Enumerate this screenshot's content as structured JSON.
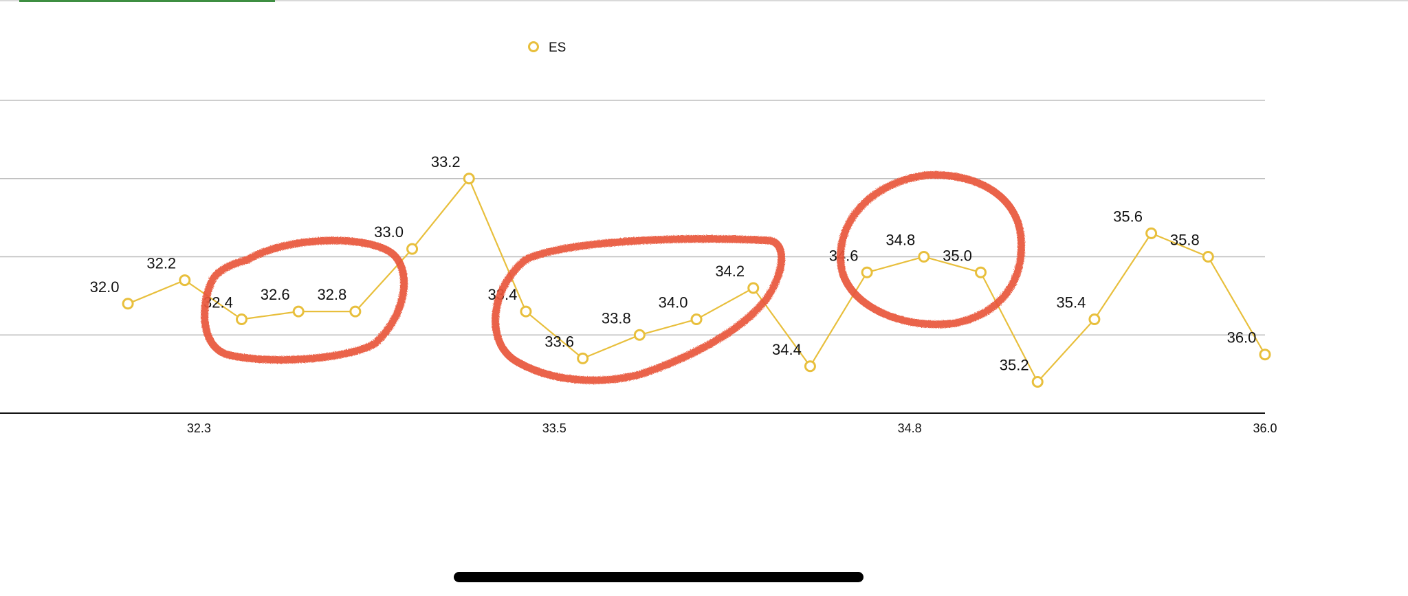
{
  "status": {
    "progress_color": "#3e8e41"
  },
  "legend": {
    "label": "ES"
  },
  "colors": {
    "series": "#e8bf3c",
    "annotation": "#e9573a",
    "grid": "#bdbdbd",
    "axis": "#111111"
  },
  "chart_data": {
    "type": "line",
    "series": [
      {
        "name": "ES",
        "points": [
          {
            "x": 32.0,
            "y": 0.4,
            "label": "32.0"
          },
          {
            "x": 32.2,
            "y": 0.7,
            "label": "32.2"
          },
          {
            "x": 32.4,
            "y": 0.2,
            "label": "32.4"
          },
          {
            "x": 32.6,
            "y": 0.3,
            "label": "32.6"
          },
          {
            "x": 32.8,
            "y": 0.3,
            "label": "32.8"
          },
          {
            "x": 33.0,
            "y": 1.1,
            "label": "33.0"
          },
          {
            "x": 33.2,
            "y": 2.0,
            "label": "33.2"
          },
          {
            "x": 33.4,
            "y": 0.3,
            "label": "33.4"
          },
          {
            "x": 33.6,
            "y": -0.3,
            "label": "33.6"
          },
          {
            "x": 33.8,
            "y": 0.0,
            "label": "33.8"
          },
          {
            "x": 34.0,
            "y": 0.2,
            "label": "34.0"
          },
          {
            "x": 34.2,
            "y": 0.6,
            "label": "34.2"
          },
          {
            "x": 34.4,
            "y": -0.4,
            "label": "34.4"
          },
          {
            "x": 34.6,
            "y": 0.8,
            "label": "34.6"
          },
          {
            "x": 34.8,
            "y": 1.0,
            "label": "34.8"
          },
          {
            "x": 35.0,
            "y": 0.8,
            "label": "35.0"
          },
          {
            "x": 35.2,
            "y": -0.6,
            "label": "35.2"
          },
          {
            "x": 35.4,
            "y": 0.2,
            "label": "35.4"
          },
          {
            "x": 35.6,
            "y": 1.3,
            "label": "35.6"
          },
          {
            "x": 35.8,
            "y": 1.0,
            "label": "35.8"
          },
          {
            "x": 36.0,
            "y": -0.25,
            "label": "36.0"
          }
        ]
      }
    ],
    "x_ticks": [
      "32.3",
      "33.5",
      "34.8",
      "36.0"
    ],
    "x_tick_values": [
      32.25,
      33.5,
      34.75,
      36.0
    ],
    "xlim": [
      31.55,
      36.0
    ],
    "ylim": [
      -1.0,
      3.0
    ],
    "y_gridlines": [
      0,
      1,
      2,
      3
    ],
    "grid": true,
    "legend_position": "top-center",
    "annotations": [
      {
        "shape": "circled-group",
        "covers": [
          "32.4",
          "32.6",
          "32.8"
        ]
      },
      {
        "shape": "circled-group",
        "covers": [
          "33.4",
          "33.6",
          "33.8",
          "34.0",
          "34.2"
        ]
      },
      {
        "shape": "circled-group",
        "covers": [
          "34.6",
          "34.8",
          "35.0"
        ]
      }
    ]
  }
}
